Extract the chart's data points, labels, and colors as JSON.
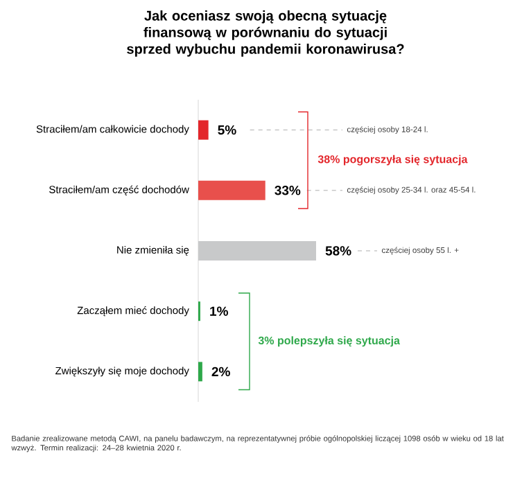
{
  "chart_data": {
    "type": "bar",
    "orientation": "horizontal",
    "title": "Jak oceniasz swoją obecną sytuację finansową w porównaniu do sytuacji sprzed wybuchu pandemii koronawirusa?",
    "categories": [
      "Straciłem/am całkowicie dochody",
      "Straciłem/am część dochodów",
      "Nie zmieniła się",
      "Zacząłem mieć dochody",
      "Zwiększyły się moje dochody"
    ],
    "values": [
      5,
      33,
      58,
      1,
      2
    ],
    "value_labels": [
      "5%",
      "33%",
      "58%",
      "1%",
      "2%"
    ],
    "colors": [
      "#e3262b",
      "#e8504c",
      "#c8c9ca",
      "#2ea84a",
      "#2ea84a"
    ],
    "annotations": [
      "częściej osoby 18-24 l.",
      "częściej osoby 25-34 l. oraz 45-54 l.",
      "częściej osoby 55 l. +",
      "38% pogorszyła się sytuacja",
      "3% polepszyła się sytuacja",
      "Badanie zrealizowane metodą CAWI, na panelu badawczym, na reprezentatywnej próbie ogólnopolskiej liczącej 1098 osób w wieku od 18 lat wzwyż. Termin realizacji: 24–28 kwietnia 2020 r."
    ]
  }
}
